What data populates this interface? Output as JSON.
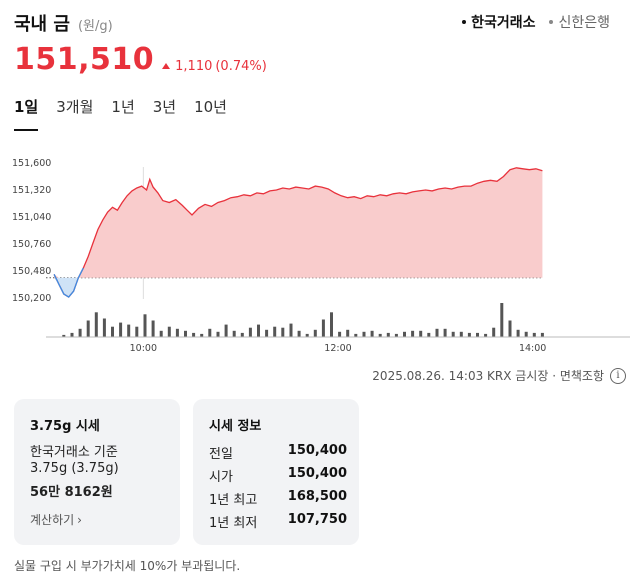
{
  "header": {
    "title": "국내 금",
    "unit": "(원/g)",
    "sources": [
      {
        "label": "한국거래소",
        "active": true
      },
      {
        "label": "신한은행",
        "active": false
      }
    ]
  },
  "price": {
    "value": "151,510",
    "change": "1,110",
    "change_pct": "(0.74%)",
    "color": "#e8323c"
  },
  "tabs": [
    "1일",
    "3개월",
    "1년",
    "3년",
    "10년"
  ],
  "active_tab": 0,
  "chart_data": {
    "type": "area",
    "y_ticks": [
      151600,
      151320,
      151040,
      150760,
      150480,
      150200
    ],
    "y_tick_labels": [
      "151,600",
      "151,320",
      "151,040",
      "150,760",
      "150,480",
      "150,200"
    ],
    "ylim": [
      150200,
      151600
    ],
    "x_tick_labels": [
      "10:00",
      "12:00",
      "14:00"
    ],
    "x_ticks_min": [
      600,
      720,
      840
    ],
    "xlim_min": [
      540,
      900
    ],
    "baseline": 150400,
    "line_color_up": "#e8323c",
    "line_color_down": "#3a8ee6",
    "fill_up": "#f9cccc",
    "price_points": [
      [
        545,
        150435
      ],
      [
        548,
        150330
      ],
      [
        551,
        150230
      ],
      [
        554,
        150200
      ],
      [
        557,
        150260
      ],
      [
        560,
        150400
      ],
      [
        563,
        150500
      ],
      [
        566,
        150620
      ],
      [
        569,
        150760
      ],
      [
        572,
        150900
      ],
      [
        575,
        151000
      ],
      [
        578,
        151080
      ],
      [
        581,
        151130
      ],
      [
        584,
        151100
      ],
      [
        587,
        151180
      ],
      [
        590,
        151250
      ],
      [
        593,
        151300
      ],
      [
        596,
        151330
      ],
      [
        599,
        151350
      ],
      [
        602,
        151310
      ],
      [
        604,
        151420
      ],
      [
        606,
        151340
      ],
      [
        609,
        151280
      ],
      [
        612,
        151200
      ],
      [
        616,
        151180
      ],
      [
        620,
        151210
      ],
      [
        624,
        151150
      ],
      [
        627,
        151100
      ],
      [
        630,
        151050
      ],
      [
        634,
        151120
      ],
      [
        638,
        151160
      ],
      [
        642,
        151140
      ],
      [
        646,
        151180
      ],
      [
        650,
        151200
      ],
      [
        654,
        151230
      ],
      [
        658,
        151240
      ],
      [
        662,
        151260
      ],
      [
        666,
        151250
      ],
      [
        670,
        151280
      ],
      [
        674,
        151270
      ],
      [
        678,
        151300
      ],
      [
        682,
        151310
      ],
      [
        686,
        151330
      ],
      [
        690,
        151320
      ],
      [
        694,
        151340
      ],
      [
        698,
        151330
      ],
      [
        702,
        151320
      ],
      [
        706,
        151350
      ],
      [
        710,
        151340
      ],
      [
        714,
        151320
      ],
      [
        718,
        151280
      ],
      [
        722,
        151250
      ],
      [
        726,
        151230
      ],
      [
        730,
        151240
      ],
      [
        734,
        151220
      ],
      [
        738,
        151250
      ],
      [
        742,
        151240
      ],
      [
        746,
        151260
      ],
      [
        750,
        151250
      ],
      [
        754,
        151270
      ],
      [
        758,
        151280
      ],
      [
        762,
        151270
      ],
      [
        766,
        151290
      ],
      [
        770,
        151300
      ],
      [
        774,
        151310
      ],
      [
        778,
        151300
      ],
      [
        782,
        151320
      ],
      [
        786,
        151330
      ],
      [
        790,
        151320
      ],
      [
        794,
        151340
      ],
      [
        798,
        151350
      ],
      [
        802,
        151350
      ],
      [
        806,
        151380
      ],
      [
        810,
        151400
      ],
      [
        814,
        151410
      ],
      [
        818,
        151400
      ],
      [
        822,
        151450
      ],
      [
        826,
        151520
      ],
      [
        830,
        151540
      ],
      [
        834,
        151530
      ],
      [
        838,
        151520
      ],
      [
        842,
        151530
      ],
      [
        846,
        151510
      ]
    ],
    "volume_bars": [
      [
        551,
        2
      ],
      [
        556,
        4
      ],
      [
        561,
        8
      ],
      [
        566,
        16
      ],
      [
        571,
        24
      ],
      [
        576,
        18
      ],
      [
        581,
        10
      ],
      [
        586,
        14
      ],
      [
        591,
        12
      ],
      [
        596,
        10
      ],
      [
        601,
        22
      ],
      [
        606,
        16
      ],
      [
        611,
        6
      ],
      [
        616,
        10
      ],
      [
        621,
        8
      ],
      [
        626,
        6
      ],
      [
        631,
        4
      ],
      [
        636,
        3
      ],
      [
        641,
        8
      ],
      [
        646,
        5
      ],
      [
        651,
        12
      ],
      [
        656,
        6
      ],
      [
        661,
        4
      ],
      [
        666,
        9
      ],
      [
        671,
        12
      ],
      [
        676,
        7
      ],
      [
        681,
        10
      ],
      [
        686,
        9
      ],
      [
        691,
        13
      ],
      [
        696,
        6
      ],
      [
        701,
        3
      ],
      [
        706,
        7
      ],
      [
        711,
        17
      ],
      [
        716,
        24
      ],
      [
        721,
        5
      ],
      [
        726,
        7
      ],
      [
        731,
        3
      ],
      [
        736,
        5
      ],
      [
        741,
        6
      ],
      [
        746,
        3
      ],
      [
        751,
        4
      ],
      [
        756,
        3
      ],
      [
        761,
        5
      ],
      [
        766,
        6
      ],
      [
        771,
        6
      ],
      [
        776,
        4
      ],
      [
        781,
        8
      ],
      [
        786,
        8
      ],
      [
        791,
        5
      ],
      [
        796,
        5
      ],
      [
        801,
        4
      ],
      [
        806,
        4
      ],
      [
        811,
        3
      ],
      [
        816,
        9
      ],
      [
        821,
        33
      ],
      [
        826,
        16
      ],
      [
        831,
        7
      ],
      [
        836,
        5
      ],
      [
        841,
        4
      ],
      [
        846,
        4
      ]
    ]
  },
  "footnote": {
    "text": "2025.08.26. 14:03 KRX 금시장 · 면책조항",
    "icon": "info-icon"
  },
  "card1": {
    "title": "3.75g 시세",
    "line1": "한국거래소 기준",
    "line2": "3.75g (3.75g)",
    "value": "56만 8162원",
    "calc_label": "계산하기"
  },
  "card2": {
    "title": "시세 정보",
    "rows": [
      {
        "label": "전일",
        "value": "150,400"
      },
      {
        "label": "시가",
        "value": "150,400"
      },
      {
        "label": "1년 최고",
        "value": "168,500"
      },
      {
        "label": "1년 최저",
        "value": "107,750"
      }
    ]
  },
  "notice": "실물 구입 시 부가가치세 10%가 부과됩니다."
}
